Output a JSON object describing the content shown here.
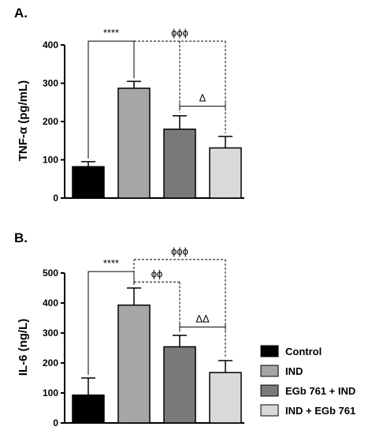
{
  "colors": {
    "Control": "#000000",
    "IND": "#a6a6a6",
    "EGb 761 + IND": "#7a7a7a",
    "IND + EGb 761": "#d9d9d9"
  },
  "legend": {
    "position": "bottom-right",
    "items": [
      "Control",
      "IND",
      "EGb 761 + IND",
      "IND + EGb 761"
    ]
  },
  "chart_data": [
    {
      "type": "bar",
      "panel_label": "A.",
      "ylabel": "TNF-α (pg/mL)",
      "ylim": [
        0,
        400
      ],
      "yticks": [
        0,
        100,
        200,
        300,
        400
      ],
      "categories": [
        "Control",
        "IND",
        "EGb 761 + IND",
        "IND + EGb 761"
      ],
      "values": [
        82,
        287,
        180,
        131
      ],
      "errors": [
        13,
        18,
        35,
        30
      ],
      "annotations": [
        {
          "text": "****",
          "style": "solid",
          "from": 0,
          "to": 1,
          "y": 410
        },
        {
          "text": "ϕϕϕ",
          "style": "dashed",
          "from": 1,
          "to": [
            2,
            3
          ],
          "y": 410
        },
        {
          "text": "Δ",
          "style": "capped",
          "from": 2,
          "to": 3,
          "y": 240
        }
      ]
    },
    {
      "type": "bar",
      "panel_label": "B.",
      "ylabel": "IL-6 (ng/L)",
      "ylim": [
        0,
        500
      ],
      "yticks": [
        0,
        100,
        200,
        300,
        400,
        500
      ],
      "categories": [
        "Control",
        "IND",
        "EGb 761 + IND",
        "IND + EGb 761"
      ],
      "values": [
        93,
        393,
        254,
        168
      ],
      "errors": [
        57,
        57,
        38,
        40
      ],
      "annotations": [
        {
          "text": "****",
          "style": "solid",
          "from": 0,
          "to": 1,
          "y": 505
        },
        {
          "text": "ϕϕϕ",
          "style": "dashed",
          "from": 1,
          "to": [
            3
          ],
          "y": 545
        },
        {
          "text": "ϕϕ",
          "style": "dashed",
          "from": 1,
          "to": [
            2
          ],
          "y": 470
        },
        {
          "text": "ΔΔ",
          "style": "capped",
          "from": 2,
          "to": 3,
          "y": 320
        }
      ]
    }
  ]
}
